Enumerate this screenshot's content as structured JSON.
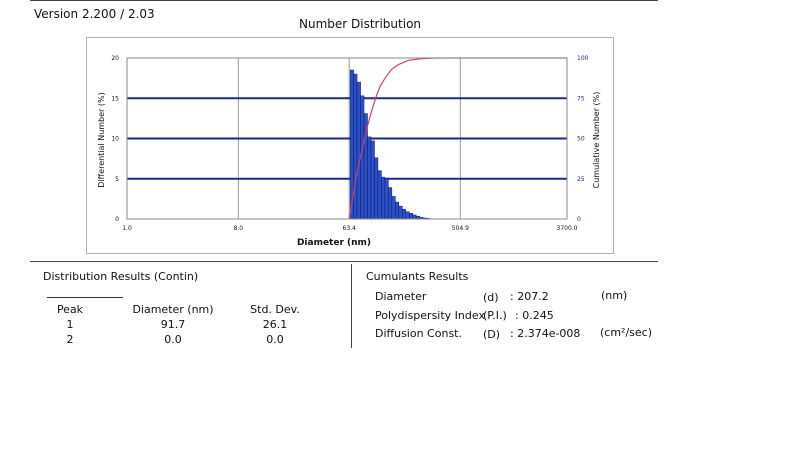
{
  "header": {
    "version": "Version 2.200 / 2.03"
  },
  "chart_data": {
    "type": "bar",
    "title": "Number Distribution",
    "xlabel": "Diameter (nm)",
    "ylabel": "Differential Number (%)",
    "y2label": "Cumulative Number (%)",
    "x_scale": "log",
    "xlim": [
      1.0,
      3700.0
    ],
    "ylim": [
      0,
      20
    ],
    "y2lim": [
      0,
      100
    ],
    "x_ticks": [
      1.0,
      8.0,
      63.4,
      504.9,
      3700.0
    ],
    "x_tick_labels": [
      "1.0",
      "8.0",
      "63.4",
      "504.9",
      "3700.0"
    ],
    "y_ticks": [
      0,
      5,
      10,
      15,
      20
    ],
    "y2_ticks": [
      0,
      25,
      50,
      75,
      100
    ],
    "grid": true,
    "bars": {
      "name": "Differential Number (%)",
      "x_start": [
        64.5,
        68.8,
        73.4,
        78.4,
        83.6,
        89.2,
        95.2,
        101.6,
        108.4,
        115.7,
        123.4,
        131.7,
        140.5,
        150.0,
        160.0,
        170.8,
        182.2,
        194.5,
        207.5,
        221.4,
        236.3,
        252.2,
        269.1
      ],
      "x_end": [
        68.8,
        73.4,
        78.4,
        83.6,
        89.2,
        95.2,
        101.6,
        108.4,
        115.7,
        123.4,
        131.7,
        140.5,
        150.0,
        160.0,
        170.8,
        182.2,
        194.5,
        207.5,
        221.4,
        236.3,
        252.2,
        269.1,
        287.2
      ],
      "values": [
        18.5,
        18.0,
        17.0,
        15.3,
        13.1,
        10.2,
        9.7,
        7.6,
        6.0,
        5.2,
        5.0,
        3.9,
        2.8,
        2.1,
        1.6,
        1.2,
        0.9,
        0.7,
        0.5,
        0.35,
        0.2,
        0.12,
        0.07
      ]
    },
    "cumulative": {
      "name": "Cumulative Number (%)",
      "x": [
        63.4,
        65,
        67,
        69,
        71,
        74,
        77,
        80,
        84,
        88,
        93,
        99,
        106,
        114,
        125,
        140,
        160,
        190,
        240,
        320,
        3700
      ],
      "y": [
        0,
        5,
        11,
        17,
        23,
        30,
        36,
        42,
        49,
        56,
        63,
        70,
        77,
        83,
        88,
        93,
        96,
        98.5,
        99.5,
        100,
        100
      ]
    },
    "colors": {
      "bars": "#2b50c8",
      "bar_edge": "#0b1a66",
      "cumulative": "#d0406a",
      "major_grid": "#1a2a8a",
      "minor_grid": "#9a9a9a",
      "tick_text": "#1d1d8e"
    }
  },
  "distribution": {
    "title": "Distribution Results (Contin)",
    "columns": [
      "Peak",
      "Diameter (nm)",
      "Std. Dev."
    ],
    "rows": [
      [
        "1",
        "91.7",
        "26.1"
      ],
      [
        "2",
        "0.0",
        "0.0"
      ]
    ]
  },
  "cumulants": {
    "title": "Cumulants Results",
    "rows": [
      {
        "label": "Diameter",
        "symbol": "(d)",
        "value": ": 207.2",
        "unit": "(nm)"
      },
      {
        "label": "Polydispersity Index",
        "symbol": "(P.I.)",
        "value": ": 0.245",
        "unit": ""
      },
      {
        "label": "Diffusion Const.",
        "symbol": "(D)",
        "value": ": 2.374e-008",
        "unit": "(cm²/sec)"
      }
    ]
  }
}
